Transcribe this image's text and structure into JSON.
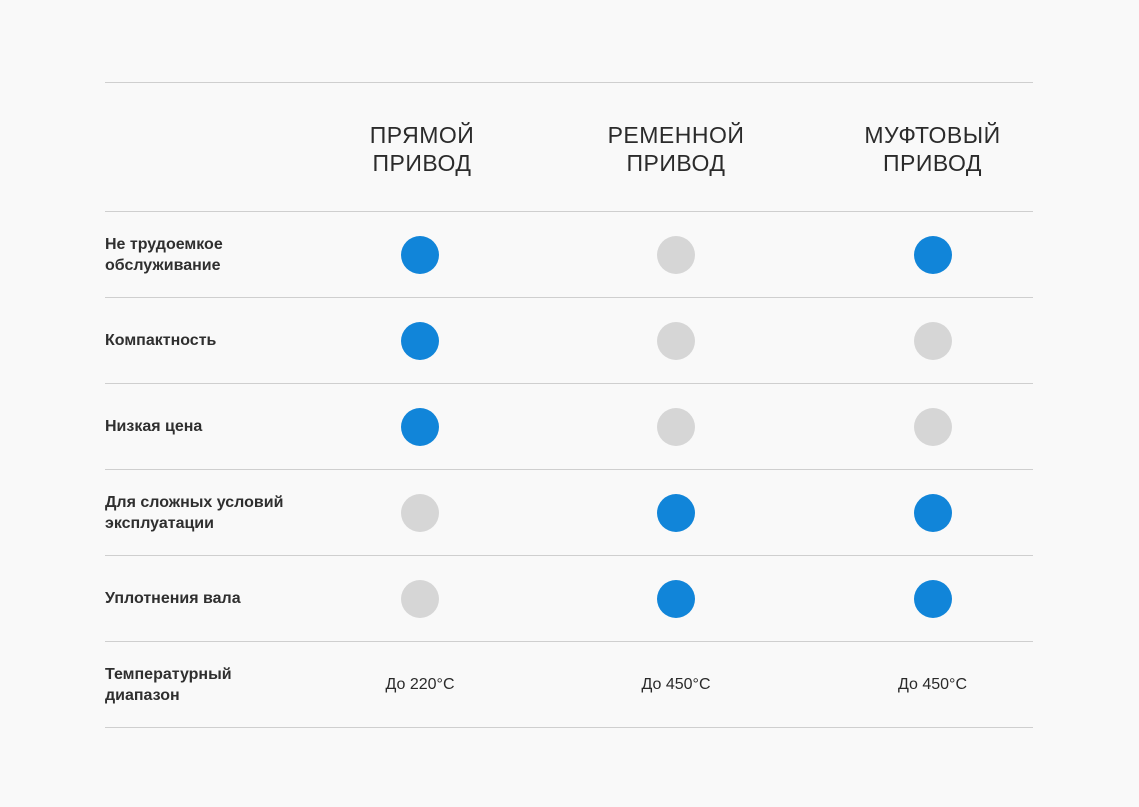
{
  "colors": {
    "yes": "#1185d9",
    "no": "#d6d6d6"
  },
  "columns": [
    "ПРЯМОЙ\nПРИВОД",
    "РЕМЕННОЙ\nПРИВОД",
    "МУФТОВЫЙ\nПРИВОД"
  ],
  "rows": [
    {
      "label": "Не трудоемкое\nобслуживание",
      "values": [
        true,
        false,
        true
      ]
    },
    {
      "label": "Компактность",
      "values": [
        true,
        false,
        false
      ]
    },
    {
      "label": "Низкая цена",
      "values": [
        true,
        false,
        false
      ]
    },
    {
      "label": "Для сложных условий\nэксплуатации",
      "values": [
        false,
        true,
        true
      ]
    },
    {
      "label": "Уплотнения вала",
      "values": [
        false,
        true,
        true
      ]
    }
  ],
  "temperature": {
    "label": "Температурный\nдиапазон",
    "values": [
      "До 220°C",
      "До 450°C",
      "До 450°C"
    ]
  }
}
